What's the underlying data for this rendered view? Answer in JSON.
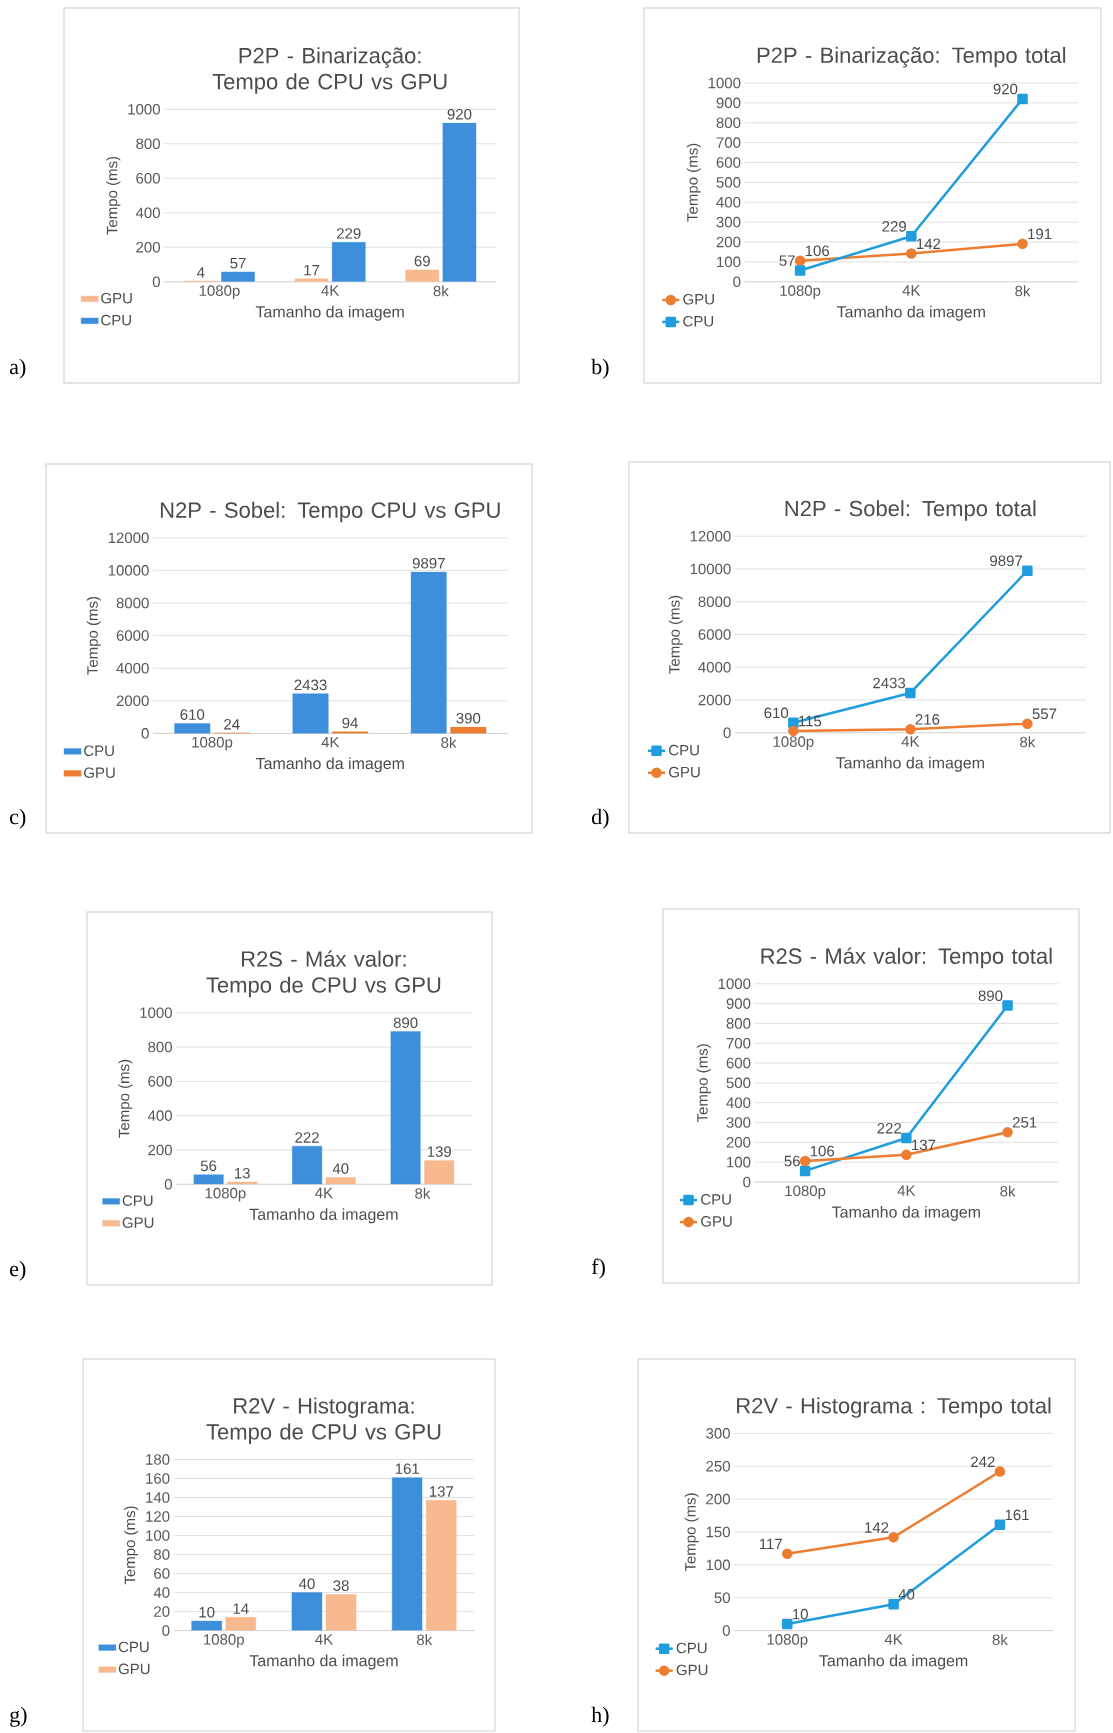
{
  "chart_data": [
    {
      "type": "bar",
      "title": "P2P - Binarização: Tempo de CPU vs GPU",
      "xlabel": "Tamanho da imagem",
      "ylabel": "Tempo (ms)",
      "categories": [
        "1080p",
        "4K",
        "8k"
      ],
      "series": [
        {
          "name": "GPU",
          "color": "#f8b98f",
          "values": [
            4,
            17,
            69
          ]
        },
        {
          "name": "CPU",
          "color": "#3d8fdc",
          "values": [
            57,
            229,
            920
          ]
        }
      ],
      "ylim": [
        0,
        1000
      ],
      "yticks": [
        0,
        200,
        400,
        600,
        800,
        1000
      ],
      "grid": "y",
      "legend": "bottom left",
      "data_labels": true,
      "annotations": [
        "a)"
      ]
    },
    {
      "type": "line",
      "title": "P2P - Binarização: Tempo total",
      "xlabel": "Tamanho da imagem",
      "ylabel": "Tempo (ms)",
      "categories": [
        "1080p",
        "4K",
        "8k"
      ],
      "series": [
        {
          "name": "GPU",
          "color": "#ed7d31",
          "marker": "circle",
          "values": [
            106,
            142,
            191
          ]
        },
        {
          "name": "CPU",
          "color": "#1f9ddc",
          "marker": "square",
          "values": [
            57,
            229,
            920
          ]
        }
      ],
      "ylim": [
        0,
        1000
      ],
      "yticks": [
        0,
        100,
        200,
        300,
        400,
        500,
        600,
        700,
        800,
        900,
        1000
      ],
      "grid": "y",
      "legend": "bottom left",
      "data_labels": true,
      "annotations": [
        "b)"
      ]
    },
    {
      "type": "bar",
      "title": "N2P - Sobel: Tempo CPU vs GPU",
      "xlabel": "Tamanho da imagem",
      "ylabel": "Tempo (ms)",
      "categories": [
        "1080p",
        "4K",
        "8k"
      ],
      "series": [
        {
          "name": "CPU",
          "color": "#3d8fdc",
          "values": [
            610,
            2433,
            9897
          ]
        },
        {
          "name": "GPU",
          "color": "#ed7d31",
          "values": [
            24,
            94,
            390
          ]
        }
      ],
      "ylim": [
        0,
        12000
      ],
      "yticks": [
        0,
        2000,
        4000,
        6000,
        8000,
        10000,
        12000
      ],
      "grid": "y",
      "legend": "bottom left",
      "data_labels": true,
      "annotations": [
        "c)"
      ]
    },
    {
      "type": "line",
      "title": "N2P - Sobel: Tempo total",
      "xlabel": "Tamanho da imagem",
      "ylabel": "Tempo (ms)",
      "categories": [
        "1080p",
        "4K",
        "8k"
      ],
      "series": [
        {
          "name": "CPU",
          "color": "#1f9ddc",
          "marker": "square",
          "values": [
            610,
            2433,
            9897
          ]
        },
        {
          "name": "GPU",
          "color": "#ed7d31",
          "marker": "circle",
          "values": [
            115,
            216,
            557
          ]
        }
      ],
      "ylim": [
        0,
        12000
      ],
      "yticks": [
        0,
        2000,
        4000,
        6000,
        8000,
        10000,
        12000
      ],
      "grid": "y",
      "legend": "bottom left",
      "data_labels": true,
      "annotations": [
        "d)"
      ]
    },
    {
      "type": "bar",
      "title": "R2S - Máx valor: Tempo de CPU vs GPU",
      "xlabel": "Tamanho da imagem",
      "ylabel": "Tempo (ms)",
      "categories": [
        "1080p",
        "4K",
        "8k"
      ],
      "series": [
        {
          "name": "CPU",
          "color": "#3d8fdc",
          "values": [
            56,
            222,
            890
          ]
        },
        {
          "name": "GPU",
          "color": "#f8b98f",
          "values": [
            13,
            40,
            139
          ]
        }
      ],
      "ylim": [
        0,
        1000
      ],
      "yticks": [
        0,
        200,
        400,
        600,
        800,
        1000
      ],
      "grid": "y",
      "legend": "bottom left",
      "data_labels": true,
      "annotations": [
        "e)"
      ]
    },
    {
      "type": "line",
      "title": "R2S - Máx valor: Tempo total",
      "xlabel": "Tamanho da imagem",
      "ylabel": "Tempo (ms)",
      "categories": [
        "1080p",
        "4K",
        "8k"
      ],
      "series": [
        {
          "name": "CPU",
          "color": "#1f9ddc",
          "marker": "square",
          "values": [
            56,
            222,
            890
          ]
        },
        {
          "name": "GPU",
          "color": "#ed7d31",
          "marker": "circle",
          "values": [
            106,
            137,
            251
          ]
        }
      ],
      "ylim": [
        0,
        1000
      ],
      "yticks": [
        0,
        100,
        200,
        300,
        400,
        500,
        600,
        700,
        800,
        900,
        1000
      ],
      "grid": "y",
      "legend": "bottom left",
      "data_labels": true,
      "annotations": [
        "f)"
      ]
    },
    {
      "type": "bar",
      "title": "R2V - Histograma: Tempo de CPU vs GPU",
      "xlabel": "Tamanho da imagem",
      "ylabel": "Tempo (ms)",
      "categories": [
        "1080p",
        "4K",
        "8k"
      ],
      "series": [
        {
          "name": "CPU",
          "color": "#3d8fdc",
          "values": [
            10,
            40,
            161
          ]
        },
        {
          "name": "GPU",
          "color": "#f8b98f",
          "values": [
            14,
            38,
            137
          ]
        }
      ],
      "ylim": [
        0,
        180
      ],
      "yticks": [
        0,
        20,
        40,
        60,
        80,
        100,
        120,
        140,
        160,
        180
      ],
      "grid": "y",
      "legend": "bottom left",
      "data_labels": true,
      "annotations": [
        "g)"
      ]
    },
    {
      "type": "line",
      "title": "R2V - Histograma : Tempo total",
      "xlabel": "Tamanho da imagem",
      "ylabel": "Tempo (ms)",
      "categories": [
        "1080p",
        "4K",
        "8k"
      ],
      "series": [
        {
          "name": "CPU",
          "color": "#1f9ddc",
          "marker": "square",
          "values": [
            10,
            40,
            161
          ]
        },
        {
          "name": "GPU",
          "color": "#ed7d31",
          "marker": "circle",
          "values": [
            117,
            142,
            242
          ]
        }
      ],
      "ylim": [
        0,
        300
      ],
      "yticks": [
        0,
        50,
        100,
        150,
        200,
        250,
        300
      ],
      "grid": "y",
      "legend": "bottom left",
      "data_labels": true,
      "annotations": [
        "h)"
      ]
    }
  ]
}
